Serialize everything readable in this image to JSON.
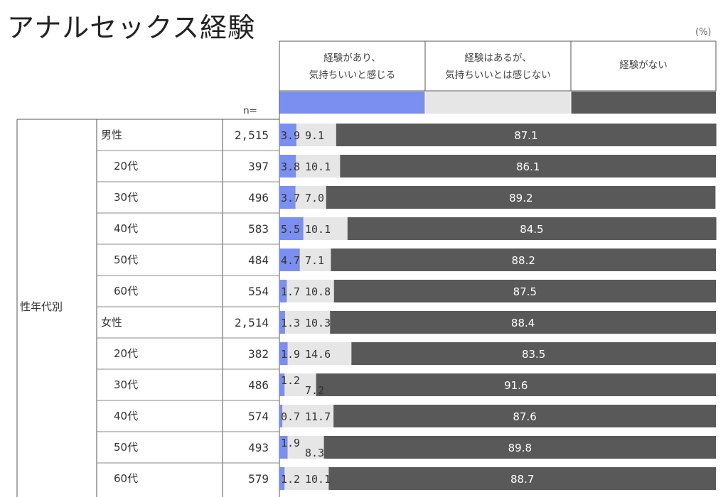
{
  "title": "アナルセックス経験",
  "unit": "(%)",
  "colors": {
    "series1": "#7b8ff0",
    "series2": "#e6e6e6",
    "series3": "#595959"
  },
  "n_header": "n=",
  "group_label": "性年代別",
  "chart_data": {
    "type": "bar",
    "orientation": "horizontal-stacked-100",
    "categories": [
      "男性",
      "20代",
      "30代",
      "40代",
      "50代",
      "60代",
      "女性",
      "20代",
      "30代",
      "40代",
      "50代",
      "60代"
    ],
    "n": [
      "2,515",
      "397",
      "496",
      "583",
      "484",
      "554",
      "2,514",
      "382",
      "486",
      "574",
      "493",
      "579"
    ],
    "series": [
      {
        "name": "経験があり、気持ちいいと感じる",
        "name_lines": [
          "経験があり、",
          "気持ちいいと感じる"
        ],
        "values": [
          3.9,
          3.8,
          3.7,
          5.5,
          4.7,
          1.7,
          1.3,
          1.9,
          1.2,
          0.7,
          1.9,
          1.2
        ]
      },
      {
        "name": "経験はあるが、気持ちいいとは感じない",
        "name_lines": [
          "経験はあるが、",
          "気持ちいいとは感じない"
        ],
        "values": [
          9.1,
          10.1,
          7.0,
          10.1,
          7.1,
          10.8,
          10.3,
          14.6,
          7.2,
          11.7,
          8.3,
          10.1
        ]
      },
      {
        "name": "経験がない",
        "name_lines": [
          "経験がない"
        ],
        "values": [
          87.1,
          86.1,
          89.2,
          84.5,
          88.2,
          87.5,
          88.4,
          83.5,
          91.6,
          87.6,
          89.8,
          88.7
        ]
      }
    ],
    "xlim": [
      0,
      100
    ],
    "legend": "top"
  }
}
